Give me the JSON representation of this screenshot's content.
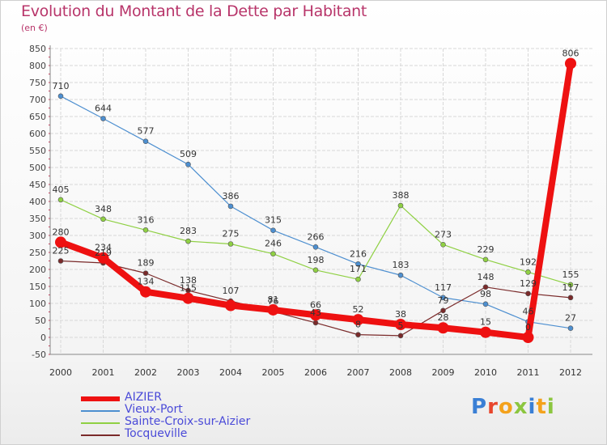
{
  "title": "Evolution du Montant de la Dette par Habitant",
  "unit_label": "(en €)",
  "logo": {
    "text": "Proxiti",
    "letter_colors": [
      "#3a7fd5",
      "#e8462d",
      "#f4a21c",
      "#8cc63f",
      "#3a7fd5",
      "#f4a21c",
      "#8cc63f"
    ]
  },
  "chart_data": {
    "type": "line",
    "title": "Evolution du Montant de la Dette par Habitant",
    "ylabel": "(en €)",
    "xlabel": "",
    "x": [
      "2000",
      "2001",
      "2002",
      "2003",
      "2004",
      "2005",
      "2006",
      "2007",
      "2008",
      "2009",
      "2010",
      "2011",
      "2012"
    ],
    "ylim": [
      -50,
      850
    ],
    "yticks": [
      "-50",
      "0",
      "50",
      "100",
      "150",
      "200",
      "250",
      "300",
      "350",
      "400",
      "450",
      "500",
      "550",
      "600",
      "650",
      "700",
      "750",
      "800",
      "850"
    ],
    "grid": true,
    "legend_position": "bottom-left",
    "series": [
      {
        "name": "AIZIER",
        "color": "#ee1111",
        "highlight": true,
        "values": [
          280,
          234,
          134,
          115,
          94,
          81,
          66,
          52,
          38,
          28,
          15,
          0,
          806
        ],
        "labels": [
          "280",
          "234",
          "134",
          "115",
          "",
          "81",
          "66",
          "52",
          "38",
          "28",
          "15",
          "0",
          "806"
        ]
      },
      {
        "name": "Vieux-Port",
        "color": "#4d8fd0",
        "values": [
          710,
          644,
          577,
          509,
          386,
          315,
          266,
          216,
          183,
          117,
          98,
          46,
          27
        ],
        "labels": [
          "710",
          "644",
          "577",
          "509",
          "386",
          "315",
          "266",
          "216",
          "183",
          "117",
          "98",
          "46",
          "27"
        ]
      },
      {
        "name": "Sainte-Croix-sur-Aizier",
        "color": "#8fd043",
        "values": [
          405,
          348,
          316,
          283,
          275,
          246,
          198,
          171,
          388,
          273,
          229,
          192,
          155
        ],
        "labels": [
          "405",
          "348",
          "316",
          "283",
          "275",
          "246",
          "198",
          "171",
          "388",
          "273",
          "229",
          "192",
          "155"
        ]
      },
      {
        "name": "Tocqueville",
        "color": "#7a2a2a",
        "values": [
          225,
          219,
          189,
          138,
          107,
          76,
          43,
          8,
          5,
          79,
          148,
          129,
          117
        ],
        "labels": [
          "225",
          "219",
          "189",
          "138",
          "107",
          "76",
          "43",
          "8",
          "5",
          "79",
          "148",
          "129",
          "117"
        ]
      }
    ]
  }
}
